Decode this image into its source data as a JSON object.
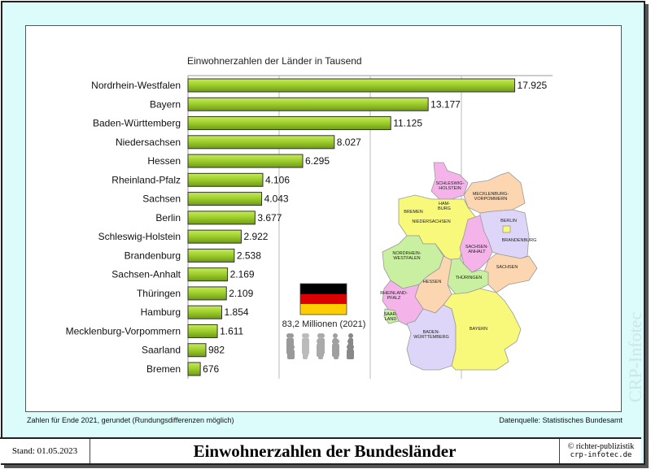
{
  "chart_data": {
    "type": "bar",
    "orientation": "horizontal",
    "title": "Einwohnerzahlen der Länder in Tausend",
    "categories": [
      "Nordrhein-Westfalen",
      "Bayern",
      "Baden-Württemberg",
      "Niedersachsen",
      "Hessen",
      "Rheinland-Pfalz",
      "Sachsen",
      "Berlin",
      "Schleswig-Holstein",
      "Brandenburg",
      "Sachsen-Anhalt",
      "Thüringen",
      "Hamburg",
      "Mecklenburg-Vorpommern",
      "Saarland",
      "Bremen"
    ],
    "values": [
      17925,
      13177,
      11125,
      8027,
      6295,
      4106,
      4043,
      3677,
      2922,
      2538,
      2169,
      2109,
      1854,
      1611,
      982,
      676
    ],
    "value_labels": [
      "17.925",
      "13.177",
      "11.125",
      "8.027",
      "6.295",
      "4.106",
      "4.043",
      "3.677",
      "2.922",
      "2.538",
      "2.169",
      "2.109",
      "1.854",
      "1.611",
      "982",
      "676"
    ],
    "xlim": [
      0,
      20000
    ],
    "gridlines": [
      5000,
      10000,
      15000
    ],
    "grid": true,
    "bar_color": "#9ccc2a"
  },
  "total": {
    "label": "83,2 Millionen (2021)"
  },
  "flag_colors": [
    "#000000",
    "#dd0000",
    "#ffce00"
  ],
  "map_labels": {
    "sh": [
      "SCHLESWIG-",
      "HOLSTEIN"
    ],
    "mv": [
      "MECKLENBURG-",
      "VORPOMMERN"
    ],
    "hh": [
      "HAM-",
      "BURG"
    ],
    "hb": "BREMEN",
    "ni": "NIEDERSACHSEN",
    "be": "BERLIN",
    "bb": "BRANDENBURG",
    "st": [
      "SACHSEN-",
      "ANHALT"
    ],
    "nw": [
      "NORDRHEIN-",
      "WESTFALEN"
    ],
    "sn": "SACHSEN",
    "he": "HESSEN",
    "th": "THÜRINGEN",
    "rp": [
      "RHEINLAND-",
      "PFALZ"
    ],
    "sl": [
      "SAAR-",
      "LAND"
    ],
    "bw": [
      "BADEN-",
      "WÜRTTEMBERG"
    ],
    "by": "BAYERN"
  },
  "notes": {
    "left": "Zahlen für Ende 2021, gerundet (Rundungsdifferenzen möglich)",
    "right": "Datenquelle: Statistisches Bundesamt"
  },
  "footer": {
    "date": "Stand: 01.05.2023",
    "title": "Einwohnerzahlen der Bundesländer",
    "copyright": "© richter-publizistik",
    "site": "crp-infotec.de"
  },
  "watermark": "CRP-Infotec"
}
